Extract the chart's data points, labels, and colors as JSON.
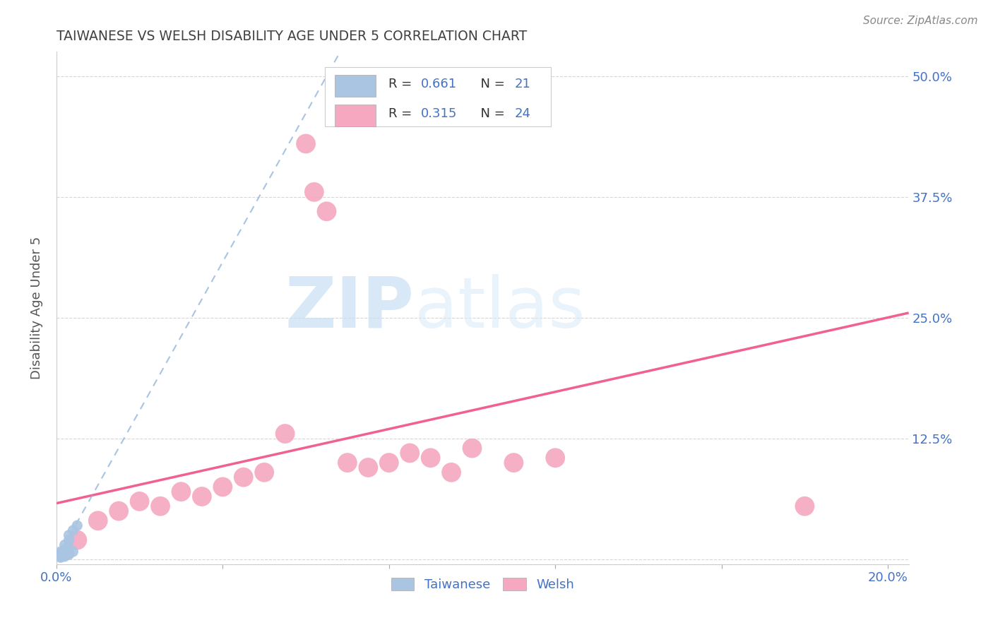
{
  "title": "TAIWANESE VS WELSH DISABILITY AGE UNDER 5 CORRELATION CHART",
  "source": "Source: ZipAtlas.com",
  "ylabel": "Disability Age Under 5",
  "watermark_zip": "ZIP",
  "watermark_atlas": "atlas",
  "xlim": [
    0.0,
    0.205
  ],
  "ylim": [
    -0.005,
    0.525
  ],
  "yticks": [
    0.0,
    0.125,
    0.25,
    0.375,
    0.5
  ],
  "ytick_labels": [
    "",
    "12.5%",
    "25.0%",
    "37.5%",
    "50.0%"
  ],
  "xticks": [
    0.0,
    0.04,
    0.08,
    0.12,
    0.16,
    0.2
  ],
  "xtick_labels": [
    "0.0%",
    "",
    "",
    "",
    "",
    "20.0%"
  ],
  "legend_R_taiwanese": "0.661",
  "legend_N_taiwanese": "21",
  "legend_R_welsh": "0.315",
  "legend_N_welsh": "24",
  "taiwanese_color": "#aac5e2",
  "welsh_color": "#f5a8c0",
  "taiwanese_line_color": "#8ab0d8",
  "welsh_line_color": "#f06090",
  "axis_label_color": "#4472c4",
  "title_color": "#404040",
  "taiwanese_points": [
    [
      0.001,
      0.005
    ],
    [
      0.001,
      0.008
    ],
    [
      0.001,
      0.003
    ],
    [
      0.001,
      0.002
    ],
    [
      0.001,
      0.004
    ],
    [
      0.001,
      0.006
    ],
    [
      0.002,
      0.005
    ],
    [
      0.002,
      0.007
    ],
    [
      0.002,
      0.01
    ],
    [
      0.002,
      0.003
    ],
    [
      0.002,
      0.004
    ],
    [
      0.002,
      0.015
    ],
    [
      0.003,
      0.006
    ],
    [
      0.003,
      0.008
    ],
    [
      0.003,
      0.012
    ],
    [
      0.003,
      0.005
    ],
    [
      0.003,
      0.02
    ],
    [
      0.003,
      0.025
    ],
    [
      0.004,
      0.008
    ],
    [
      0.004,
      0.03
    ],
    [
      0.005,
      0.035
    ]
  ],
  "welsh_points": [
    [
      0.005,
      0.02
    ],
    [
      0.01,
      0.04
    ],
    [
      0.015,
      0.05
    ],
    [
      0.02,
      0.06
    ],
    [
      0.025,
      0.055
    ],
    [
      0.03,
      0.07
    ],
    [
      0.035,
      0.065
    ],
    [
      0.04,
      0.075
    ],
    [
      0.045,
      0.085
    ],
    [
      0.05,
      0.09
    ],
    [
      0.055,
      0.13
    ],
    [
      0.06,
      0.43
    ],
    [
      0.062,
      0.38
    ],
    [
      0.065,
      0.36
    ],
    [
      0.07,
      0.1
    ],
    [
      0.075,
      0.095
    ],
    [
      0.08,
      0.1
    ],
    [
      0.085,
      0.11
    ],
    [
      0.09,
      0.105
    ],
    [
      0.095,
      0.09
    ],
    [
      0.1,
      0.115
    ],
    [
      0.11,
      0.1
    ],
    [
      0.12,
      0.105
    ],
    [
      0.18,
      0.055
    ]
  ],
  "background_color": "#ffffff",
  "grid_color": "#cccccc",
  "taiwanese_point_size": 120,
  "welsh_point_size": 400
}
